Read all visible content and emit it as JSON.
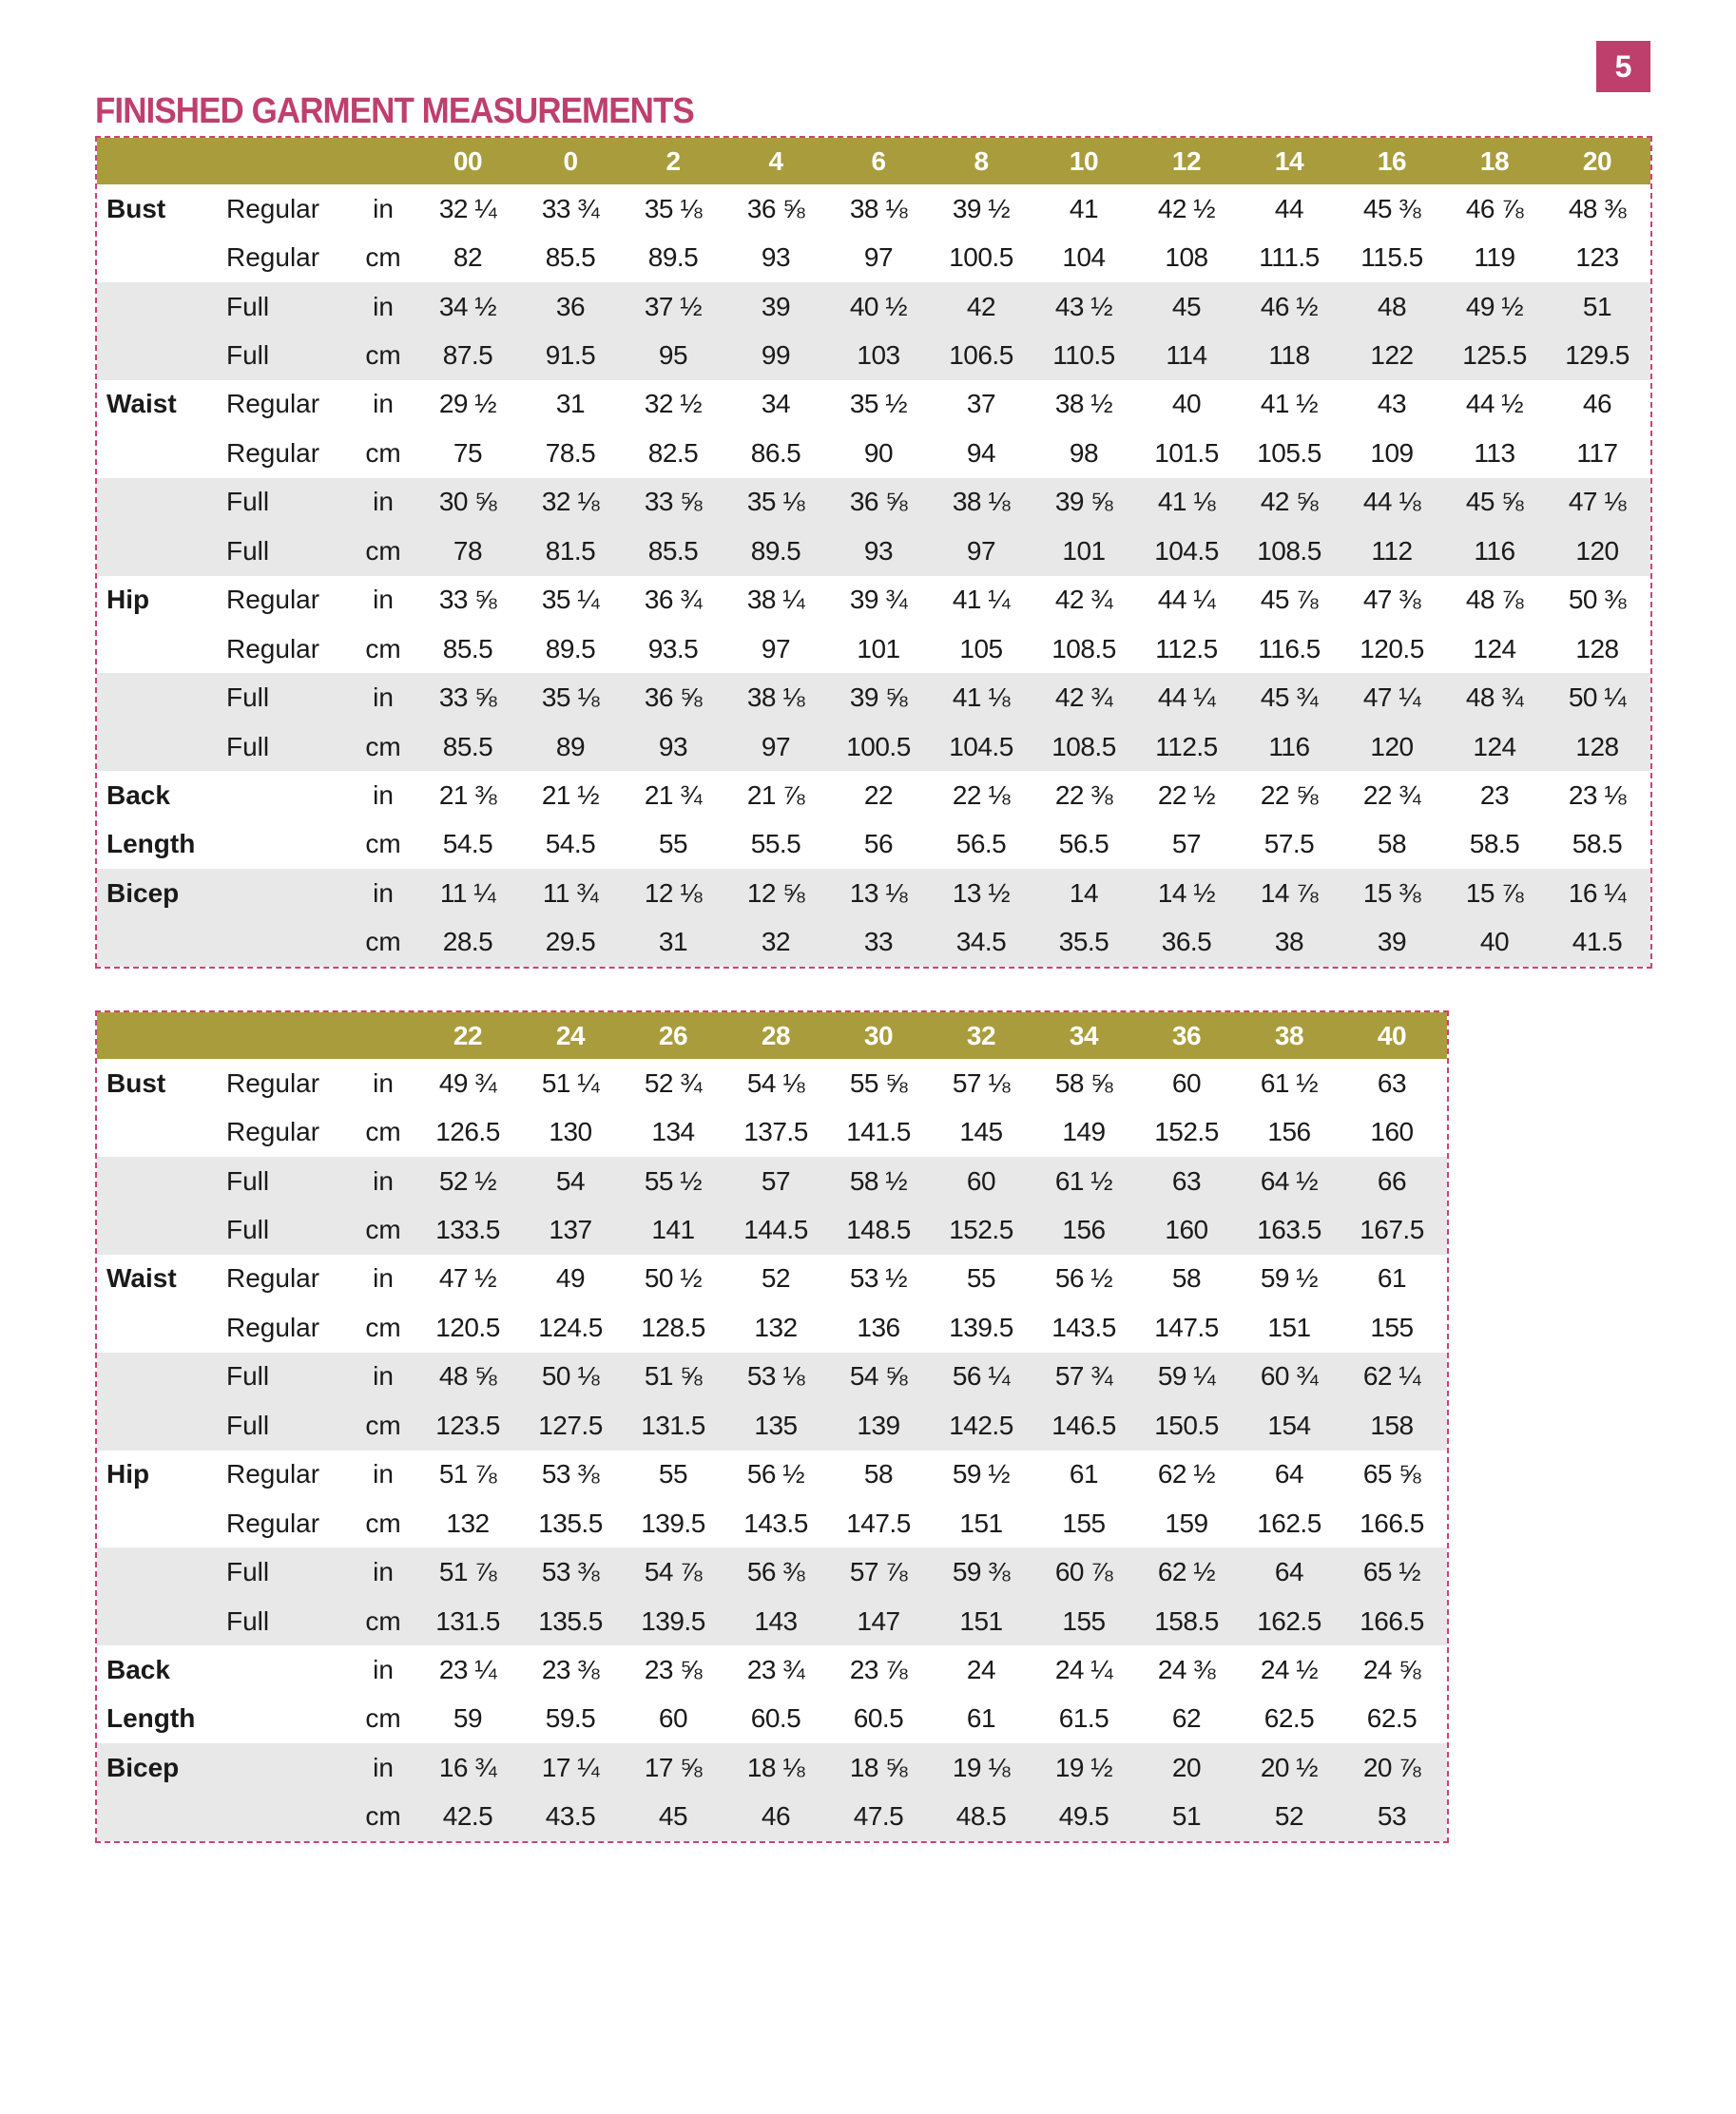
{
  "page_number": "5",
  "title": "FINISHED GARMENT MEASUREMENTS",
  "colors": {
    "accent": "#bf3f6c",
    "header": "#a99c3c",
    "band": "#e8e8e8"
  },
  "tables": [
    {
      "sizes": [
        "00",
        "0",
        "2",
        "4",
        "6",
        "8",
        "10",
        "12",
        "14",
        "16",
        "18",
        "20"
      ],
      "rows": [
        {
          "label": "Bust",
          "sub": "Regular",
          "unit": "in",
          "values": [
            "32 ¼",
            "33 ¾",
            "35 ⅛",
            "36 ⅝",
            "38 ⅛",
            "39 ½",
            "41",
            "42 ½",
            "44",
            "45 ⅜",
            "46 ⅞",
            "48 ⅜"
          ]
        },
        {
          "label": "",
          "sub": "Regular",
          "unit": "cm",
          "values": [
            "82",
            "85.5",
            "89.5",
            "93",
            "97",
            "100.5",
            "104",
            "108",
            "111.5",
            "115.5",
            "119",
            "123"
          ]
        },
        {
          "label": "",
          "sub": "Full",
          "unit": "in",
          "values": [
            "34 ½",
            "36",
            "37 ½",
            "39",
            "40 ½",
            "42",
            "43 ½",
            "45",
            "46 ½",
            "48",
            "49 ½",
            "51"
          ]
        },
        {
          "label": "",
          "sub": "Full",
          "unit": "cm",
          "values": [
            "87.5",
            "91.5",
            "95",
            "99",
            "103",
            "106.5",
            "110.5",
            "114",
            "118",
            "122",
            "125.5",
            "129.5"
          ]
        },
        {
          "label": "Waist",
          "sub": "Regular",
          "unit": "in",
          "values": [
            "29 ½",
            "31",
            "32 ½",
            "34",
            "35 ½",
            "37",
            "38 ½",
            "40",
            "41 ½",
            "43",
            "44 ½",
            "46"
          ]
        },
        {
          "label": "",
          "sub": "Regular",
          "unit": "cm",
          "values": [
            "75",
            "78.5",
            "82.5",
            "86.5",
            "90",
            "94",
            "98",
            "101.5",
            "105.5",
            "109",
            "113",
            "117"
          ]
        },
        {
          "label": "",
          "sub": "Full",
          "unit": "in",
          "values": [
            "30 ⅝",
            "32 ⅛",
            "33 ⅝",
            "35 ⅛",
            "36 ⅝",
            "38 ⅛",
            "39 ⅝",
            "41 ⅛",
            "42 ⅝",
            "44 ⅛",
            "45 ⅝",
            "47 ⅛"
          ]
        },
        {
          "label": "",
          "sub": "Full",
          "unit": "cm",
          "values": [
            "78",
            "81.5",
            "85.5",
            "89.5",
            "93",
            "97",
            "101",
            "104.5",
            "108.5",
            "112",
            "116",
            "120"
          ]
        },
        {
          "label": "Hip",
          "sub": "Regular",
          "unit": "in",
          "values": [
            "33 ⅝",
            "35 ¼",
            "36 ¾",
            "38 ¼",
            "39 ¾",
            "41 ¼",
            "42 ¾",
            "44 ¼",
            "45 ⅞",
            "47 ⅜",
            "48 ⅞",
            "50 ⅜"
          ]
        },
        {
          "label": "",
          "sub": "Regular",
          "unit": "cm",
          "values": [
            "85.5",
            "89.5",
            "93.5",
            "97",
            "101",
            "105",
            "108.5",
            "112.5",
            "116.5",
            "120.5",
            "124",
            "128"
          ]
        },
        {
          "label": "",
          "sub": "Full",
          "unit": "in",
          "values": [
            "33 ⅝",
            "35 ⅛",
            "36 ⅝",
            "38 ⅛",
            "39 ⅝",
            "41 ⅛",
            "42 ¾",
            "44 ¼",
            "45 ¾",
            "47 ¼",
            "48 ¾",
            "50 ¼"
          ]
        },
        {
          "label": "",
          "sub": "Full",
          "unit": "cm",
          "values": [
            "85.5",
            "89",
            "93",
            "97",
            "100.5",
            "104.5",
            "108.5",
            "112.5",
            "116",
            "120",
            "124",
            "128"
          ]
        },
        {
          "label": "Back",
          "sub": "",
          "unit": "in",
          "values": [
            "21 ⅜",
            "21 ½",
            "21 ¾",
            "21 ⅞",
            "22",
            "22 ⅛",
            "22 ⅜",
            "22 ½",
            "22 ⅝",
            "22 ¾",
            "23",
            "23 ⅛"
          ]
        },
        {
          "label": "Length",
          "sub": "",
          "unit": "cm",
          "values": [
            "54.5",
            "54.5",
            "55",
            "55.5",
            "56",
            "56.5",
            "56.5",
            "57",
            "57.5",
            "58",
            "58.5",
            "58.5"
          ]
        },
        {
          "label": "Bicep",
          "sub": "",
          "unit": "in",
          "values": [
            "11 ¼",
            "11 ¾",
            "12 ⅛",
            "12 ⅝",
            "13 ⅛",
            "13 ½",
            "14",
            "14 ½",
            "14 ⅞",
            "15 ⅜",
            "15 ⅞",
            "16 ¼"
          ]
        },
        {
          "label": "",
          "sub": "",
          "unit": "cm",
          "values": [
            "28.5",
            "29.5",
            "31",
            "32",
            "33",
            "34.5",
            "35.5",
            "36.5",
            "38",
            "39",
            "40",
            "41.5"
          ]
        }
      ]
    },
    {
      "sizes": [
        "22",
        "24",
        "26",
        "28",
        "30",
        "32",
        "34",
        "36",
        "38",
        "40"
      ],
      "rows": [
        {
          "label": "Bust",
          "sub": "Regular",
          "unit": "in",
          "values": [
            "49 ¾",
            "51 ¼",
            "52 ¾",
            "54 ⅛",
            "55 ⅝",
            "57 ⅛",
            "58 ⅝",
            "60",
            "61 ½",
            "63"
          ]
        },
        {
          "label": "",
          "sub": "Regular",
          "unit": "cm",
          "values": [
            "126.5",
            "130",
            "134",
            "137.5",
            "141.5",
            "145",
            "149",
            "152.5",
            "156",
            "160"
          ]
        },
        {
          "label": "",
          "sub": "Full",
          "unit": "in",
          "values": [
            "52 ½",
            "54",
            "55 ½",
            "57",
            "58 ½",
            "60",
            "61 ½",
            "63",
            "64 ½",
            "66"
          ]
        },
        {
          "label": "",
          "sub": "Full",
          "unit": "cm",
          "values": [
            "133.5",
            "137",
            "141",
            "144.5",
            "148.5",
            "152.5",
            "156",
            "160",
            "163.5",
            "167.5"
          ]
        },
        {
          "label": "Waist",
          "sub": "Regular",
          "unit": "in",
          "values": [
            "47 ½",
            "49",
            "50 ½",
            "52",
            "53 ½",
            "55",
            "56 ½",
            "58",
            "59 ½",
            "61"
          ]
        },
        {
          "label": "",
          "sub": "Regular",
          "unit": "cm",
          "values": [
            "120.5",
            "124.5",
            "128.5",
            "132",
            "136",
            "139.5",
            "143.5",
            "147.5",
            "151",
            "155"
          ]
        },
        {
          "label": "",
          "sub": "Full",
          "unit": "in",
          "values": [
            "48 ⅝",
            "50 ⅛",
            "51 ⅝",
            "53 ⅛",
            "54 ⅝",
            "56 ¼",
            "57 ¾",
            "59 ¼",
            "60 ¾",
            "62 ¼"
          ]
        },
        {
          "label": "",
          "sub": "Full",
          "unit": "cm",
          "values": [
            "123.5",
            "127.5",
            "131.5",
            "135",
            "139",
            "142.5",
            "146.5",
            "150.5",
            "154",
            "158"
          ]
        },
        {
          "label": "Hip",
          "sub": "Regular",
          "unit": "in",
          "values": [
            "51 ⅞",
            "53 ⅜",
            "55",
            "56 ½",
            "58",
            "59 ½",
            "61",
            "62 ½",
            "64",
            "65 ⅝"
          ]
        },
        {
          "label": "",
          "sub": "Regular",
          "unit": "cm",
          "values": [
            "132",
            "135.5",
            "139.5",
            "143.5",
            "147.5",
            "151",
            "155",
            "159",
            "162.5",
            "166.5"
          ]
        },
        {
          "label": "",
          "sub": "Full",
          "unit": "in",
          "values": [
            "51 ⅞",
            "53 ⅜",
            "54 ⅞",
            "56 ⅜",
            "57 ⅞",
            "59 ⅜",
            "60 ⅞",
            "62 ½",
            "64",
            "65 ½"
          ]
        },
        {
          "label": "",
          "sub": "Full",
          "unit": "cm",
          "values": [
            "131.5",
            "135.5",
            "139.5",
            "143",
            "147",
            "151",
            "155",
            "158.5",
            "162.5",
            "166.5"
          ]
        },
        {
          "label": "Back",
          "sub": "",
          "unit": "in",
          "values": [
            "23 ¼",
            "23 ⅜",
            "23 ⅝",
            "23 ¾",
            "23 ⅞",
            "24",
            "24 ¼",
            "24 ⅜",
            "24 ½",
            "24 ⅝"
          ]
        },
        {
          "label": "Length",
          "sub": "",
          "unit": "cm",
          "values": [
            "59",
            "59.5",
            "60",
            "60.5",
            "60.5",
            "61",
            "61.5",
            "62",
            "62.5",
            "62.5"
          ]
        },
        {
          "label": "Bicep",
          "sub": "",
          "unit": "in",
          "values": [
            "16 ¾",
            "17 ¼",
            "17 ⅝",
            "18 ⅛",
            "18 ⅝",
            "19 ⅛",
            "19 ½",
            "20",
            "20 ½",
            "20 ⅞"
          ]
        },
        {
          "label": "",
          "sub": "",
          "unit": "cm",
          "values": [
            "42.5",
            "43.5",
            "45",
            "46",
            "47.5",
            "48.5",
            "49.5",
            "51",
            "52",
            "53"
          ]
        }
      ]
    }
  ]
}
